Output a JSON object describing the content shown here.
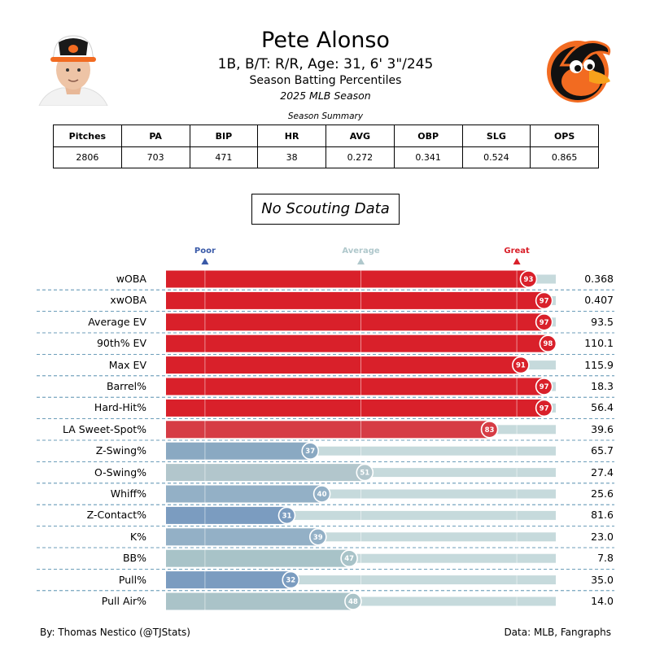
{
  "header": {
    "player_name": "Pete Alonso",
    "player_info": "1B, B/T: R/R, Age: 31, 6' 3\"/245",
    "report_title": "Season Batting Percentiles",
    "season_line": "2025 MLB Season"
  },
  "summary": {
    "caption": "Season Summary",
    "columns": [
      "Pitches",
      "PA",
      "BIP",
      "HR",
      "AVG",
      "OBP",
      "SLG",
      "OPS"
    ],
    "values": [
      "2806",
      "703",
      "471",
      "38",
      "0.272",
      "0.341",
      "0.524",
      "0.865"
    ]
  },
  "scouting": {
    "text": "No Scouting Data"
  },
  "scale": {
    "poor": "Poor",
    "average": "Average",
    "great": "Great",
    "poor_color": "#3a5aa8",
    "average_color": "#b0c8cc",
    "great_color": "#d9202a"
  },
  "chart_data": {
    "type": "bar",
    "orientation": "horizontal",
    "xlim": [
      0,
      100
    ],
    "categories": [
      "wOBA",
      "xwOBA",
      "Average EV",
      "90th% EV",
      "Max EV",
      "Barrel%",
      "Hard-Hit%",
      "LA Sweet-Spot%",
      "Z-Swing%",
      "O-Swing%",
      "Whiff%",
      "Z-Contact%",
      "K%",
      "BB%",
      "Pull%",
      "Pull Air%"
    ],
    "percentiles": [
      93,
      97,
      97,
      98,
      91,
      97,
      97,
      83,
      37,
      51,
      40,
      31,
      39,
      47,
      32,
      48
    ],
    "stat_values": [
      "0.368",
      "0.407",
      "93.5",
      "110.1",
      "115.9",
      "18.3",
      "56.4",
      "39.6",
      "65.7",
      "27.4",
      "25.6",
      "81.6",
      "23.0",
      "7.8",
      "35.0",
      "14.0"
    ],
    "bar_colors": [
      "#d9202a",
      "#d9202a",
      "#d9202a",
      "#d9202a",
      "#d9202a",
      "#d9202a",
      "#d9202a",
      "#d63c45",
      "#8aa9c2",
      "#b2c6cc",
      "#93b0c6",
      "#7b9cc0",
      "#93b0c6",
      "#a8c3c8",
      "#7b9cc0",
      "#aac3c8"
    ],
    "track_color": "#c6dadc",
    "reference_marks": [
      10,
      50,
      90
    ]
  },
  "footer": {
    "credit": "By: Thomas Nestico (@TJStats)",
    "source": "Data: MLB, Fangraphs"
  }
}
